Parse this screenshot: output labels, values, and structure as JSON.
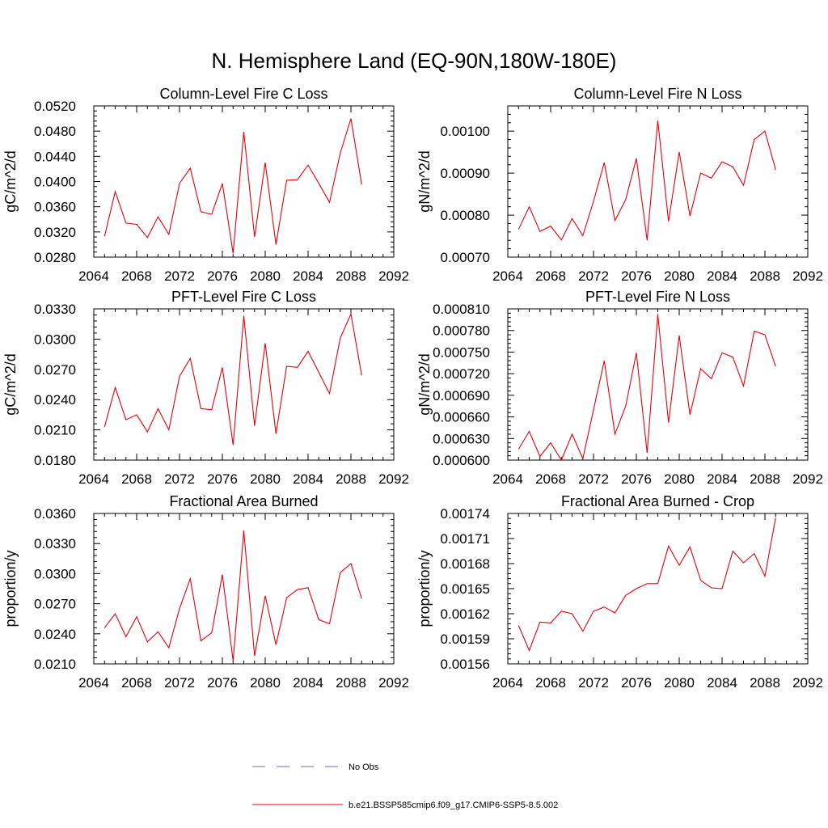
{
  "page": {
    "title": "N. Hemisphere Land (EQ-90N,180W-180E)"
  },
  "legend": {
    "position": "bottom-center",
    "items": [
      {
        "label": "No Obs",
        "color": "#6b6bb8",
        "dash": true
      },
      {
        "label": "b.e21.BSSP585cmip6.f09_g17.CMIP6-SSP5-8.5.002",
        "color": "#e8000b",
        "dash": false
      }
    ]
  },
  "chart_data": [
    {
      "type": "line",
      "title": "Column-Level Fire C Loss",
      "ylabel": "gC/m^2/d",
      "xlim": [
        2064,
        2092
      ],
      "xticks": [
        "2064",
        "2068",
        "2072",
        "2076",
        "2080",
        "2084",
        "2088",
        "2092"
      ],
      "ylim": [
        0.028,
        0.052
      ],
      "yticks": [
        "0.0280",
        "0.0320",
        "0.0360",
        "0.0400",
        "0.0440",
        "0.0480",
        "0.0520"
      ],
      "grid": false,
      "series": [
        {
          "name": "b.e21.BSSP585cmip6.f09_g17.CMIP6-SSP5-8.5.002",
          "color": "#e8000b",
          "x": [
            2065,
            2066,
            2067,
            2068,
            2069,
            2070,
            2071,
            2072,
            2073,
            2074,
            2075,
            2076,
            2077,
            2078,
            2079,
            2080,
            2081,
            2082,
            2083,
            2084,
            2085,
            2086,
            2087,
            2088,
            2089
          ],
          "y": [
            0.0313,
            0.0384,
            0.0334,
            0.0332,
            0.0311,
            0.0344,
            0.0316,
            0.0397,
            0.0421,
            0.0352,
            0.0348,
            0.0397,
            0.0286,
            0.0479,
            0.0312,
            0.043,
            0.03,
            0.0402,
            0.0403,
            0.0426,
            0.0397,
            0.0367,
            0.0445,
            0.05,
            0.0395
          ]
        }
      ]
    },
    {
      "type": "line",
      "title": "Column-Level Fire N Loss",
      "ylabel": "gN/m^2/d",
      "xlim": [
        2064,
        2092
      ],
      "xticks": [
        "2064",
        "2068",
        "2072",
        "2076",
        "2080",
        "2084",
        "2088",
        "2092"
      ],
      "ylim": [
        0.0007,
        0.00106
      ],
      "yticks": [
        "0.00070",
        "0.00080",
        "0.00090",
        "0.00100"
      ],
      "grid": false,
      "series": [
        {
          "name": "b.e21.BSSP585cmip6.f09_g17.CMIP6-SSP5-8.5.002",
          "color": "#e8000b",
          "x": [
            2065,
            2066,
            2067,
            2068,
            2069,
            2070,
            2071,
            2072,
            2073,
            2074,
            2075,
            2076,
            2077,
            2078,
            2079,
            2080,
            2081,
            2082,
            2083,
            2084,
            2085,
            2086,
            2087,
            2088,
            2089
          ],
          "y": [
            0.000766,
            0.00082,
            0.000761,
            0.000774,
            0.000741,
            0.000792,
            0.000751,
            0.000833,
            0.000925,
            0.000787,
            0.000837,
            0.000935,
            0.00074,
            0.001025,
            0.000785,
            0.00095,
            0.000798,
            0.0009,
            0.000888,
            0.000927,
            0.000915,
            0.000871,
            0.00098,
            0.001,
            0.000908
          ]
        }
      ]
    },
    {
      "type": "line",
      "title": "PFT-Level Fire C Loss",
      "ylabel": "gC/m^2/d",
      "xlim": [
        2064,
        2092
      ],
      "xticks": [
        "2064",
        "2068",
        "2072",
        "2076",
        "2080",
        "2084",
        "2088",
        "2092"
      ],
      "ylim": [
        0.018,
        0.033
      ],
      "yticks": [
        "0.0180",
        "0.0210",
        "0.0240",
        "0.0270",
        "0.0300",
        "0.0330"
      ],
      "grid": false,
      "series": [
        {
          "name": "b.e21.BSSP585cmip6.f09_g17.CMIP6-SSP5-8.5.002",
          "color": "#e8000b",
          "x": [
            2065,
            2066,
            2067,
            2068,
            2069,
            2070,
            2071,
            2072,
            2073,
            2074,
            2075,
            2076,
            2077,
            2078,
            2079,
            2080,
            2081,
            2082,
            2083,
            2084,
            2085,
            2086,
            2087,
            2088,
            2089
          ],
          "y": [
            0.0213,
            0.0252,
            0.022,
            0.0225,
            0.0208,
            0.0231,
            0.021,
            0.0263,
            0.0281,
            0.0231,
            0.023,
            0.0272,
            0.0195,
            0.0323,
            0.0214,
            0.0296,
            0.0206,
            0.0273,
            0.0272,
            0.0288,
            0.0267,
            0.0246,
            0.0301,
            0.0325,
            0.0264
          ]
        }
      ]
    },
    {
      "type": "line",
      "title": "PFT-Level Fire N Loss",
      "ylabel": "gN/m^2/d",
      "xlim": [
        2064,
        2092
      ],
      "xticks": [
        "2064",
        "2068",
        "2072",
        "2076",
        "2080",
        "2084",
        "2088",
        "2092"
      ],
      "ylim": [
        0.0006,
        0.00081
      ],
      "yticks": [
        "0.000600",
        "0.000630",
        "0.000660",
        "0.000690",
        "0.000720",
        "0.000750",
        "0.000780",
        "0.000810"
      ],
      "grid": false,
      "series": [
        {
          "name": "b.e21.BSSP585cmip6.f09_g17.CMIP6-SSP5-8.5.002",
          "color": "#e8000b",
          "x": [
            2065,
            2066,
            2067,
            2068,
            2069,
            2070,
            2071,
            2072,
            2073,
            2074,
            2075,
            2076,
            2077,
            2078,
            2079,
            2080,
            2081,
            2082,
            2083,
            2084,
            2085,
            2086,
            2087,
            2088,
            2089
          ],
          "y": [
            0.000615,
            0.00064,
            0.000605,
            0.000624,
            0.0006,
            0.000636,
            0.000602,
            0.00067,
            0.000738,
            0.000636,
            0.000675,
            0.000749,
            0.00061,
            0.000802,
            0.000652,
            0.000773,
            0.000663,
            0.000727,
            0.000713,
            0.000749,
            0.000743,
            0.000703,
            0.000779,
            0.000774,
            0.00073
          ]
        }
      ]
    },
    {
      "type": "line",
      "title": "Fractional Area Burned",
      "ylabel": "proportion/y",
      "xlim": [
        2064,
        2092
      ],
      "xticks": [
        "2064",
        "2068",
        "2072",
        "2076",
        "2080",
        "2084",
        "2088",
        "2092"
      ],
      "ylim": [
        0.021,
        0.036
      ],
      "yticks": [
        "0.0210",
        "0.0240",
        "0.0270",
        "0.0300",
        "0.0330",
        "0.0360"
      ],
      "grid": false,
      "series": [
        {
          "name": "b.e21.BSSP585cmip6.f09_g17.CMIP6-SSP5-8.5.002",
          "color": "#e8000b",
          "x": [
            2065,
            2066,
            2067,
            2068,
            2069,
            2070,
            2071,
            2072,
            2073,
            2074,
            2075,
            2076,
            2077,
            2078,
            2079,
            2080,
            2081,
            2082,
            2083,
            2084,
            2085,
            2086,
            2087,
            2088,
            2089
          ],
          "y": [
            0.0246,
            0.026,
            0.0237,
            0.0257,
            0.0232,
            0.0242,
            0.0226,
            0.0265,
            0.0295,
            0.0233,
            0.0241,
            0.0299,
            0.0213,
            0.0343,
            0.0218,
            0.0278,
            0.0229,
            0.0276,
            0.0284,
            0.0286,
            0.0254,
            0.025,
            0.0301,
            0.031,
            0.0275
          ]
        }
      ]
    },
    {
      "type": "line",
      "title": "Fractional Area Burned - Crop",
      "ylabel": "proportion/y",
      "xlim": [
        2064,
        2092
      ],
      "xticks": [
        "2064",
        "2068",
        "2072",
        "2076",
        "2080",
        "2084",
        "2088",
        "2092"
      ],
      "ylim": [
        0.00156,
        0.00174
      ],
      "yticks": [
        "0.00156",
        "0.00159",
        "0.00162",
        "0.00165",
        "0.00168",
        "0.00171",
        "0.00174"
      ],
      "grid": false,
      "series": [
        {
          "name": "b.e21.BSSP585cmip6.f09_g17.CMIP6-SSP5-8.5.002",
          "color": "#e8000b",
          "x": [
            2065,
            2066,
            2067,
            2068,
            2069,
            2070,
            2071,
            2072,
            2073,
            2074,
            2075,
            2076,
            2077,
            2078,
            2079,
            2080,
            2081,
            2082,
            2083,
            2084,
            2085,
            2086,
            2087,
            2088,
            2089
          ],
          "y": [
            0.001606,
            0.001576,
            0.00161,
            0.001609,
            0.001623,
            0.00162,
            0.001599,
            0.001623,
            0.001628,
            0.001621,
            0.001642,
            0.00165,
            0.001656,
            0.001656,
            0.001701,
            0.001678,
            0.0017,
            0.00166,
            0.001651,
            0.00165,
            0.001695,
            0.001681,
            0.001692,
            0.001665,
            0.001735
          ]
        }
      ]
    }
  ]
}
